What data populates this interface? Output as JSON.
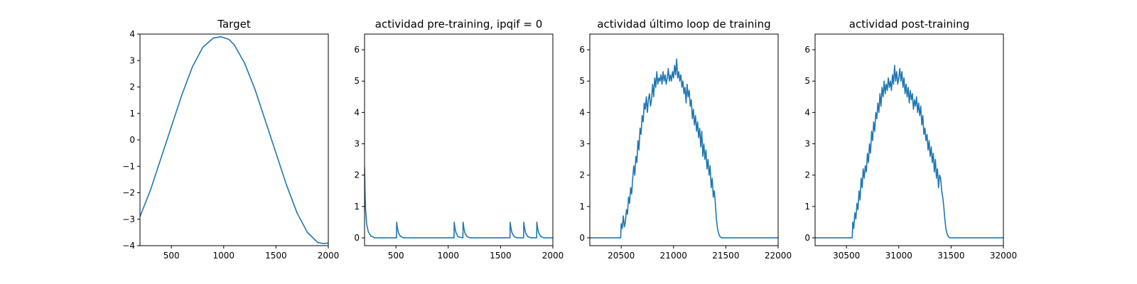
{
  "chart_data": [
    {
      "type": "line",
      "title": "Target",
      "xlim": [
        200,
        2000
      ],
      "ylim": [
        -4,
        4
      ],
      "xticks": [
        500,
        1000,
        1500,
        2000
      ],
      "yticks": [
        -4,
        -3,
        -2,
        -1,
        0,
        1,
        2,
        3,
        4
      ],
      "xtick_labels": [
        "500",
        "1000",
        "1500",
        "2000"
      ],
      "ytick_labels": [
        "−4",
        "−3",
        "−2",
        "−1",
        "0",
        "1",
        "2",
        "3",
        "4"
      ],
      "color": "#1f77b4",
      "series": [
        {
          "x": [
            200,
            300,
            400,
            500,
            600,
            700,
            800,
            900,
            975,
            1050,
            1100,
            1200,
            1300,
            1400,
            1500,
            1600,
            1700,
            1800,
            1900,
            1950,
            2000
          ],
          "y": [
            -2.9,
            -1.9,
            -0.7,
            0.5,
            1.7,
            2.75,
            3.5,
            3.85,
            3.9,
            3.8,
            3.6,
            2.9,
            1.9,
            0.7,
            -0.5,
            -1.7,
            -2.75,
            -3.5,
            -3.88,
            -3.92,
            -3.9
          ]
        }
      ]
    },
    {
      "type": "line",
      "title": "actividad pre-training, ipqif = 0",
      "xlim": [
        200,
        2000
      ],
      "ylim": [
        -0.25,
        6.5
      ],
      "xticks": [
        500,
        1000,
        1500,
        2000
      ],
      "yticks": [
        0,
        1,
        2,
        3,
        4,
        5,
        6
      ],
      "xtick_labels": [
        "500",
        "1000",
        "1500",
        "2000"
      ],
      "ytick_labels": [
        "0",
        "1",
        "2",
        "3",
        "4",
        "5",
        "6"
      ],
      "color": "#1f77b4",
      "series": [
        {
          "x": [
            200,
            205,
            210,
            220,
            235,
            260,
            300,
            505,
            507,
            515,
            525,
            545,
            575,
            1055,
            1057,
            1065,
            1075,
            1095,
            1140,
            1142,
            1150,
            1160,
            1180,
            1210,
            1590,
            1592,
            1600,
            1610,
            1630,
            1660,
            1720,
            1722,
            1730,
            1740,
            1760,
            1790,
            1845,
            1847,
            1855,
            1865,
            1885,
            1915,
            2000
          ],
          "y": [
            2.25,
            1.4,
            0.9,
            0.45,
            0.2,
            0.06,
            0.0,
            0.0,
            0.5,
            0.3,
            0.15,
            0.04,
            0.0,
            0.0,
            0.5,
            0.3,
            0.15,
            0.03,
            0.0,
            0.5,
            0.3,
            0.15,
            0.04,
            0.0,
            0.0,
            0.5,
            0.3,
            0.15,
            0.04,
            0.0,
            0.0,
            0.5,
            0.3,
            0.15,
            0.04,
            0.0,
            0.0,
            0.5,
            0.3,
            0.15,
            0.04,
            0.0,
            0.0
          ]
        }
      ]
    },
    {
      "type": "line",
      "title": "actividad último loop de training",
      "xlim": [
        20200,
        22000
      ],
      "ylim": [
        -0.25,
        6.5
      ],
      "xticks": [
        20500,
        21000,
        21500,
        22000
      ],
      "yticks": [
        0,
        1,
        2,
        3,
        4,
        5,
        6
      ],
      "xtick_labels": [
        "20500",
        "21000",
        "21500",
        "22000"
      ],
      "ytick_labels": [
        "0",
        "1",
        "2",
        "3",
        "4",
        "5",
        "6"
      ],
      "color": "#1f77b4",
      "series": [
        {
          "x": [
            20200,
            20495,
            20500,
            20510,
            20520,
            20530,
            20540,
            20550,
            20560,
            20570,
            20580,
            20590,
            20600,
            20610,
            20620,
            20630,
            20640,
            20650,
            20660,
            20670,
            20680,
            20690,
            20700,
            20710,
            20720,
            20730,
            20740,
            20750,
            20760,
            20770,
            20780,
            20790,
            20800,
            20810,
            20820,
            20830,
            20840,
            20850,
            20860,
            20870,
            20880,
            20890,
            20900,
            20910,
            20920,
            20930,
            20940,
            20950,
            20960,
            20970,
            20980,
            20990,
            21000,
            21010,
            21020,
            21030,
            21040,
            21050,
            21060,
            21070,
            21080,
            21090,
            21100,
            21110,
            21120,
            21130,
            21140,
            21150,
            21160,
            21170,
            21180,
            21190,
            21200,
            21210,
            21220,
            21230,
            21240,
            21250,
            21260,
            21270,
            21280,
            21290,
            21300,
            21310,
            21320,
            21330,
            21340,
            21350,
            21360,
            21370,
            21380,
            21390,
            21400,
            21410,
            21420,
            21430,
            21440,
            21450,
            21460,
            21470,
            21480,
            21500,
            21550,
            22000
          ],
          "y": [
            0.0,
            0.0,
            0.45,
            0.3,
            0.7,
            0.35,
            0.5,
            0.9,
            0.75,
            1.3,
            1.1,
            1.6,
            1.4,
            1.9,
            2.3,
            2.0,
            2.6,
            2.4,
            3.1,
            2.8,
            3.5,
            3.3,
            3.9,
            3.7,
            4.3,
            4.1,
            4.5,
            4.0,
            4.4,
            4.6,
            4.2,
            4.4,
            4.9,
            4.5,
            5.1,
            4.8,
            5.3,
            4.9,
            5.1,
            5.0,
            5.2,
            4.9,
            5.3,
            5.0,
            5.2,
            4.9,
            5.1,
            5.4,
            5.0,
            5.2,
            5.0,
            5.3,
            5.1,
            5.5,
            5.2,
            5.7,
            5.1,
            5.3,
            5.0,
            5.2,
            4.8,
            5.0,
            4.6,
            4.8,
            4.3,
            4.9,
            4.5,
            4.7,
            4.2,
            4.4,
            3.8,
            4.1,
            3.6,
            3.9,
            3.4,
            3.7,
            3.2,
            3.5,
            2.9,
            3.4,
            2.6,
            3.0,
            2.5,
            2.8,
            2.2,
            2.5,
            2.0,
            2.3,
            1.6,
            1.9,
            1.3,
            1.5,
            1.1,
            0.6,
            0.3,
            0.15,
            0.06,
            0.02,
            0.0,
            0.0,
            0.0,
            0.0,
            0.0,
            0.0
          ]
        }
      ]
    },
    {
      "type": "line",
      "title": "actividad post-training",
      "xlim": [
        30200,
        32000
      ],
      "ylim": [
        -0.25,
        6.5
      ],
      "xticks": [
        30500,
        31000,
        31500,
        32000
      ],
      "yticks": [
        0,
        1,
        2,
        3,
        4,
        5,
        6
      ],
      "xtick_labels": [
        "30500",
        "31000",
        "31500",
        "32000"
      ],
      "ytick_labels": [
        "0",
        "1",
        "2",
        "3",
        "4",
        "5",
        "6"
      ],
      "color": "#1f77b4",
      "series": [
        {
          "x": [
            30200,
            30555,
            30560,
            30570,
            30580,
            30590,
            30600,
            30610,
            30620,
            30630,
            30640,
            30650,
            30660,
            30670,
            30680,
            30690,
            30700,
            30710,
            30720,
            30730,
            30740,
            30750,
            30760,
            30770,
            30780,
            30790,
            30800,
            30810,
            30820,
            30830,
            30840,
            30850,
            30860,
            30870,
            30880,
            30890,
            30900,
            30910,
            30920,
            30930,
            30940,
            30950,
            30960,
            30970,
            30980,
            30990,
            31000,
            31010,
            31020,
            31030,
            31040,
            31050,
            31060,
            31070,
            31080,
            31090,
            31100,
            31110,
            31120,
            31130,
            31140,
            31150,
            31160,
            31170,
            31180,
            31190,
            31200,
            31210,
            31220,
            31230,
            31240,
            31250,
            31260,
            31270,
            31280,
            31290,
            31300,
            31310,
            31320,
            31330,
            31340,
            31350,
            31360,
            31370,
            31380,
            31390,
            31400,
            31410,
            31420,
            31430,
            31440,
            31450,
            31460,
            31470,
            31480,
            31490,
            31500,
            31520,
            31550,
            32000
          ],
          "y": [
            0.0,
            0.0,
            0.5,
            0.3,
            0.8,
            0.6,
            1.1,
            0.9,
            1.5,
            1.2,
            1.9,
            1.6,
            2.2,
            1.9,
            2.3,
            2.1,
            2.7,
            2.4,
            3.0,
            2.7,
            3.4,
            3.1,
            3.7,
            3.4,
            4.0,
            3.8,
            4.3,
            4.0,
            4.6,
            4.2,
            4.8,
            4.5,
            5.0,
            4.6,
            4.9,
            4.7,
            5.1,
            4.8,
            5.0,
            4.7,
            5.2,
            4.9,
            5.5,
            5.0,
            5.3,
            4.9,
            5.1,
            5.4,
            5.0,
            5.3,
            4.8,
            5.1,
            4.6,
            4.9,
            4.5,
            4.8,
            4.3,
            4.7,
            4.4,
            4.6,
            4.1,
            4.4,
            4.2,
            4.5,
            4.0,
            4.3,
            3.9,
            4.2,
            3.6,
            3.9,
            3.3,
            3.5,
            3.1,
            3.3,
            2.8,
            3.1,
            2.6,
            2.9,
            2.4,
            2.7,
            2.1,
            2.5,
            1.9,
            2.2,
            1.6,
            2.0,
            1.9,
            1.5,
            1.3,
            1.0,
            0.6,
            0.3,
            0.15,
            0.06,
            0.02,
            0.0,
            0.0,
            0.0,
            0.0,
            0.0
          ]
        }
      ]
    }
  ]
}
